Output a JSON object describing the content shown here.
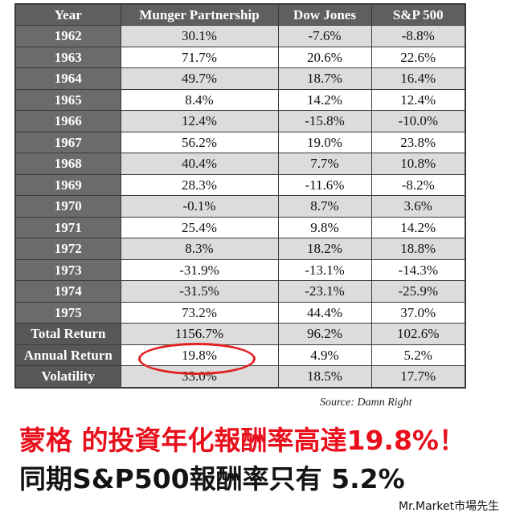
{
  "table": {
    "headers": [
      "Year",
      "Munger Partnership",
      "Dow Jones",
      "S&P 500"
    ],
    "rows": [
      [
        "1962",
        "30.1%",
        "-7.6%",
        "-8.8%"
      ],
      [
        "1963",
        "71.7%",
        "20.6%",
        "22.6%"
      ],
      [
        "1964",
        "49.7%",
        "18.7%",
        "16.4%"
      ],
      [
        "1965",
        "8.4%",
        "14.2%",
        "12.4%"
      ],
      [
        "1966",
        "12.4%",
        "-15.8%",
        "-10.0%"
      ],
      [
        "1967",
        "56.2%",
        "19.0%",
        "23.8%"
      ],
      [
        "1968",
        "40.4%",
        "7.7%",
        "10.8%"
      ],
      [
        "1969",
        "28.3%",
        "-11.6%",
        "-8.2%"
      ],
      [
        "1970",
        "-0.1%",
        "8.7%",
        "3.6%"
      ],
      [
        "1971",
        "25.4%",
        "9.8%",
        "14.2%"
      ],
      [
        "1972",
        "8.3%",
        "18.2%",
        "18.8%"
      ],
      [
        "1973",
        "-31.9%",
        "-13.1%",
        "-14.3%"
      ],
      [
        "1974",
        "-31.5%",
        "-23.1%",
        "-25.9%"
      ],
      [
        "1975",
        "73.2%",
        "44.4%",
        "37.0%"
      ],
      [
        "Total Return",
        "1156.7%",
        "96.2%",
        "102.6%"
      ],
      [
        "Annual Return",
        "19.8%",
        "4.9%",
        "5.2%"
      ],
      [
        "Volatility",
        "33.0%",
        "18.5%",
        "17.7%"
      ]
    ]
  },
  "source": "Source: Damn Right",
  "caption_line1": "蒙格 的投資年化報酬率高達19.8%！",
  "caption_line2": "同期S&P500報酬率只有 5.2%",
  "brand": "Mr.Market市場先生",
  "colors": {
    "highlight_circle": "#e02020",
    "caption_red": "#e8101c",
    "header_bg": "#5f5f5f",
    "stripe": "#dcdcdc"
  }
}
